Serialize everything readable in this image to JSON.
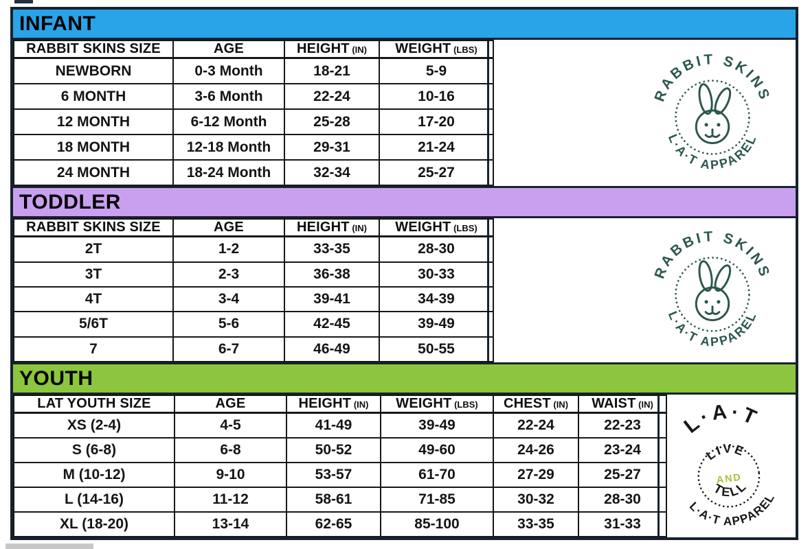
{
  "page": {
    "background": "#ffffff",
    "border_color": "#16222e",
    "bottom_left_bar_color": "#c7c7c7"
  },
  "chart": {
    "sections": [
      {
        "id": "infant",
        "title": "INFANT",
        "band_color": "#2aa4e9",
        "columns": [
          {
            "label": "RABBIT SKINS SIZE",
            "unit": ""
          },
          {
            "label": "AGE",
            "unit": ""
          },
          {
            "label": "HEIGHT",
            "unit": "(IN)"
          },
          {
            "label": "WEIGHT",
            "unit": "(LBS)"
          }
        ],
        "rows": [
          [
            "NEWBORN",
            "0-3 Month",
            "18-21",
            "5-9"
          ],
          [
            "6 MONTH",
            "3-6 Month",
            "22-24",
            "10-16"
          ],
          [
            "12 MONTH",
            "6-12 Month",
            "25-28",
            "17-20"
          ],
          [
            "18 MONTH",
            "12-18 Month",
            "29-31",
            "21-24"
          ],
          [
            "24 MONTH",
            "18-24 Month",
            "32-34",
            "25-27"
          ]
        ]
      },
      {
        "id": "toddler",
        "title": "TODDLER",
        "band_color": "#c9a0f0",
        "columns": [
          {
            "label": "RABBIT SKINS SIZE",
            "unit": ""
          },
          {
            "label": "AGE",
            "unit": ""
          },
          {
            "label": "HEIGHT",
            "unit": "(IN)"
          },
          {
            "label": "WEIGHT",
            "unit": "(LBS)"
          }
        ],
        "rows": [
          [
            "2T",
            "1-2",
            "33-35",
            "28-30"
          ],
          [
            "3T",
            "2-3",
            "36-38",
            "30-33"
          ],
          [
            "4T",
            "3-4",
            "39-41",
            "34-39"
          ],
          [
            "5/6T",
            "5-6",
            "42-45",
            "39-49"
          ],
          [
            "7",
            "6-7",
            "46-49",
            "50-55"
          ]
        ]
      },
      {
        "id": "youth",
        "title": "YOUTH",
        "band_color": "#8cc63e",
        "columns": [
          {
            "label": "LAT YOUTH SIZE",
            "unit": ""
          },
          {
            "label": "AGE",
            "unit": ""
          },
          {
            "label": "HEIGHT",
            "unit": "(IN)"
          },
          {
            "label": "WEIGHT",
            "unit": "(LBS)"
          },
          {
            "label": "CHEST",
            "unit": "(IN)"
          },
          {
            "label": "WAIST",
            "unit": "(IN)"
          }
        ],
        "rows": [
          [
            "XS (2-4)",
            "4-5",
            "41-49",
            "39-49",
            "22-24",
            "22-23"
          ],
          [
            "S (6-8)",
            "6-8",
            "50-52",
            "49-60",
            "24-26",
            "23-24"
          ],
          [
            "M (10-12)",
            "9-10",
            "53-57",
            "61-70",
            "27-29",
            "25-27"
          ],
          [
            "L (14-16)",
            "11-12",
            "58-61",
            "71-85",
            "30-32",
            "28-30"
          ],
          [
            "XL (18-20)",
            "13-14",
            "62-65",
            "85-100",
            "33-35",
            "31-33"
          ]
        ]
      }
    ],
    "logos": {
      "rabbit_skins": {
        "arc_top": "RABBIT SKINS",
        "arc_bottom": "L·A·T APPAREL",
        "icon": "bunny-face-icon",
        "color": "#2b564e"
      },
      "lat": {
        "arc_top": "L·A·T",
        "inner_top": "LIVE",
        "inner_middle": "AND",
        "inner_bottom": "TELL",
        "arc_bottom": "L·A·T APPAREL",
        "color": "#171717",
        "accent_color": "#a6c236"
      }
    }
  }
}
